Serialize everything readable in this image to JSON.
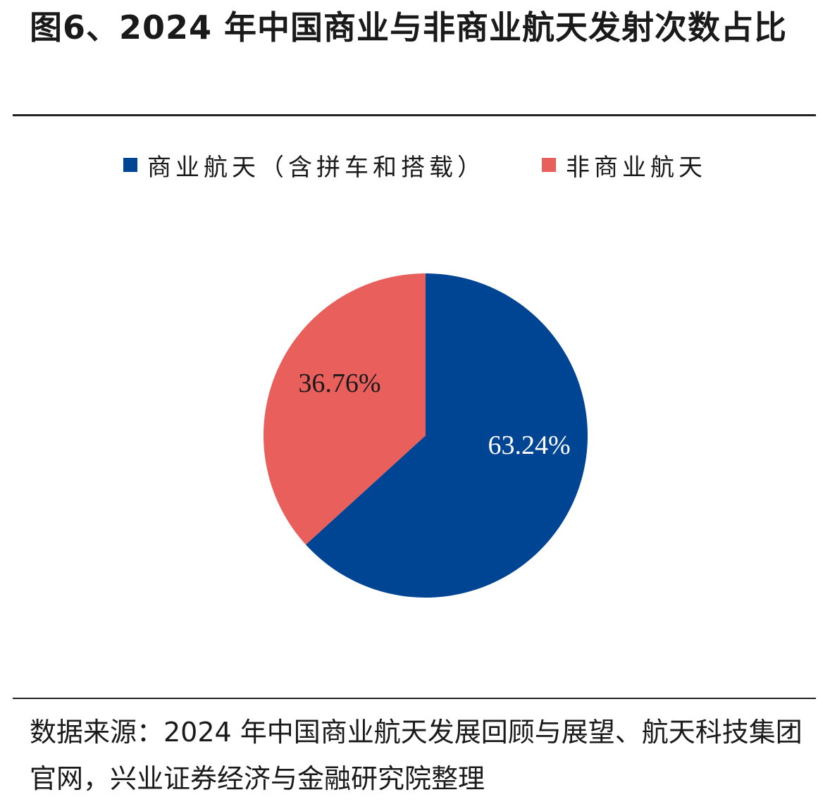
{
  "title": "图6、2024 年中国商业与非商业航天发射次数占比",
  "source": "数据来源：2024 年中国商业航天发展回顾与展望、航天科技集团官网，兴业证券经济与金融研究院整理",
  "colors": {
    "commercial": "#004494",
    "non_commercial": "#E85F5C"
  },
  "chart_data": {
    "type": "pie",
    "title": "图6、2024 年中国商业与非商业航天发射次数占比",
    "legend_position": "top",
    "slices": [
      {
        "name": "商业航天（含拼车和搭载）",
        "value": 63.24,
        "label": "63.24%",
        "color": "#004494",
        "label_color": "#ffffff"
      },
      {
        "name": "非商业航天",
        "value": 36.76,
        "label": "36.76%",
        "color": "#E85F5C",
        "label_color": "#1a1a1a"
      }
    ]
  }
}
